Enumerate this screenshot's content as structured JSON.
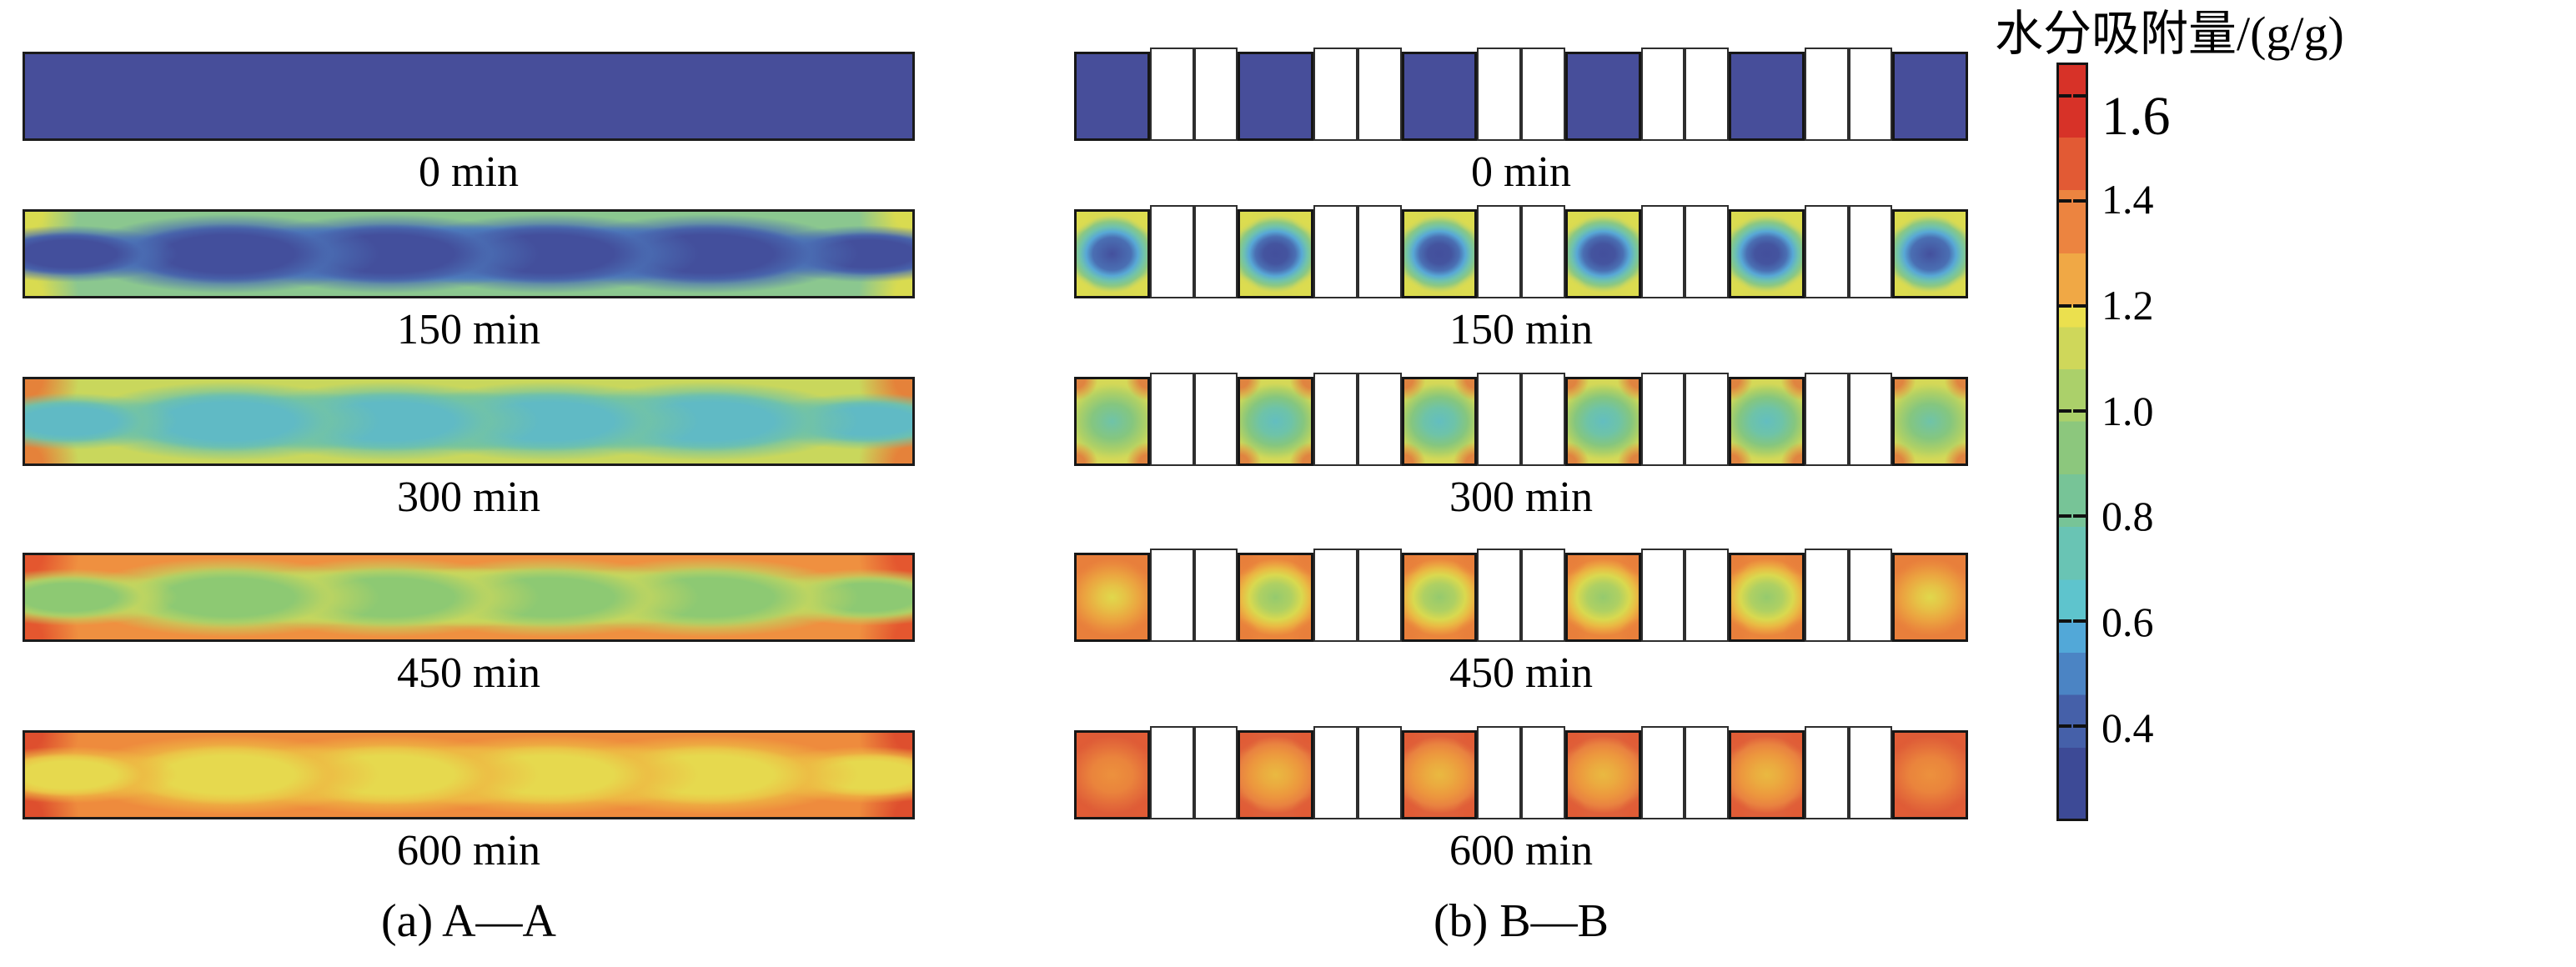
{
  "figure": {
    "background": "#ffffff",
    "left_panel_caption": "(a) A—A",
    "right_panel_caption": "(b) B—B"
  },
  "colorbar": {
    "title": "水分吸附量/(g/g)",
    "unit": "g/g",
    "ticks": [
      "1.6",
      "1.4",
      "1.2",
      "1.0",
      "0.8",
      "0.6",
      "0.4"
    ],
    "range_top_value": 1.66,
    "range_bottom_value": 0.23,
    "stops": [
      [
        0.0,
        "#d73228"
      ],
      [
        0.096,
        "#d73228"
      ],
      [
        0.096,
        "#e25a34"
      ],
      [
        0.166,
        "#e25a34"
      ],
      [
        0.166,
        "#ec8440"
      ],
      [
        0.25,
        "#ec8440"
      ],
      [
        0.25,
        "#f0a845"
      ],
      [
        0.32,
        "#f0a845"
      ],
      [
        0.32,
        "#ebe04e"
      ],
      [
        0.348,
        "#ebe04e"
      ],
      [
        0.348,
        "#cfd75a"
      ],
      [
        0.404,
        "#cfd75a"
      ],
      [
        0.404,
        "#abd06a"
      ],
      [
        0.473,
        "#abd06a"
      ],
      [
        0.473,
        "#8cc77d"
      ],
      [
        0.543,
        "#8cc77d"
      ],
      [
        0.543,
        "#77c497"
      ],
      [
        0.613,
        "#77c497"
      ],
      [
        0.613,
        "#69c4b4"
      ],
      [
        0.683,
        "#69c4b4"
      ],
      [
        0.683,
        "#5ec4cd"
      ],
      [
        0.738,
        "#5ec4cd"
      ],
      [
        0.738,
        "#52a8d8"
      ],
      [
        0.78,
        "#52a8d8"
      ],
      [
        0.78,
        "#4b84c4"
      ],
      [
        0.836,
        "#4b84c4"
      ],
      [
        0.836,
        "#4560a9"
      ],
      [
        0.906,
        "#4560a9"
      ],
      [
        0.906,
        "#3d4a96"
      ],
      [
        1.0,
        "#3d4a96"
      ]
    ]
  },
  "blob_positions_pct": [
    5,
    23,
    41,
    59,
    77,
    95
  ],
  "rows": [
    {
      "time": "0 min",
      "left": {
        "flat": "#474e9a"
      },
      "right": {
        "flat": "#474e9a"
      }
    },
    {
      "time": "150 min",
      "left": {
        "base": "#8bc78f",
        "corner": "#d9db50",
        "side": "#cdd75a",
        "band": "#58abd8",
        "halo": "#4a6db3",
        "core": "#434f9c"
      },
      "right": {
        "stops_mid": "#434f9c 0%, #44549f 26%, #4a6fb3 44%, #58a8d6 58%, #6fc2ae 70%, #8cc882 82%, #c3d562 93%, #d9da52 100%",
        "stops_end": "#44509d 0%, #4a6fb3 42%, #58a8d6 57%, #6fc2ae 70%, #8cc882 83%, #c3d562 94%, #d9da52 100%",
        "corner": "#dcdc4f"
      }
    },
    {
      "time": "300 min",
      "left": {
        "base": "#c9d75c",
        "corner": "#e5823a",
        "side": "#dbc24e",
        "band": "#85c681",
        "halo": "#72c3a6",
        "core": "#60bac5"
      },
      "right": {
        "stops_mid": "#63bec0 0%, #6ec3a8 35%, #85c67f 62%, #aed066 82%, #cdd75a 95%, #d5d857 100%",
        "stops_end": "#6fc3a9 0%, #85c67f 45%, #aed066 75%, #cdd75a 93%, #d5d857 100%",
        "corner": "#e08440"
      }
    },
    {
      "time": "450 min",
      "left": {
        "base": "#ef9040",
        "corner": "#e4572f",
        "side": "#e96e38",
        "band": "#e3da4d",
        "halo": "#c0d560",
        "core": "#8dc973"
      },
      "right": {
        "stops_mid": "#95ca6e 0%, #aed063 35%, #d9d94f 58%, #e9bc44 74%, #ec9c40 88%, #ea853c 100%",
        "stops_end": "#e0d84c 0%, #e6c246 30%, #eba440 60%, #ea8a3d 85%, #e87f3b 100%",
        "corner": "#e87f3b"
      }
    },
    {
      "time": "600 min",
      "left": {
        "base": "#ee8b3d",
        "corner": "#de4f2e",
        "side": "#e7703a",
        "band": "#f0a943",
        "halo": "#edbb44",
        "core": "#e6d94e"
      },
      "right": {
        "stops_mid": "#e9b941 0%, #ebaa3f 30%, #ec963e 58%, #e98240 80%, #e2693b 95%, #df613a 100%",
        "stops_end": "#ec913d 0%, #ea843c 45%, #e46d3a 75%, #de5c37 100%",
        "corner": "#e05c36"
      }
    }
  ],
  "chart_data": {
    "type": "heatmap",
    "title": "水分吸附量/(g/g)",
    "legend_position": "right",
    "colorbar_range": [
      0.4,
      1.6
    ],
    "colorbar_tick_labels": [
      1.6,
      1.4,
      1.2,
      1.0,
      0.8,
      0.6,
      0.4
    ],
    "times_min": [
      0,
      150,
      300,
      450,
      600
    ],
    "panels": [
      {
        "name": "(a) A—A",
        "description": "continuous cross-section, 6 periodic adsorption cells",
        "approx_values_gg": [
          {
            "time_min": 0,
            "center": 0.3,
            "edge": 0.3,
            "corner": 0.3
          },
          {
            "time_min": 150,
            "center": 0.35,
            "edge": 0.9,
            "corner": 1.15
          },
          {
            "time_min": 300,
            "center": 0.65,
            "edge": 1.1,
            "corner": 1.4
          },
          {
            "time_min": 450,
            "center": 0.95,
            "edge": 1.3,
            "corner": 1.5
          },
          {
            "time_min": 600,
            "center": 1.15,
            "edge": 1.35,
            "corner": 1.55
          }
        ]
      },
      {
        "name": "(b) B—B",
        "description": "6 adsorbent segments separated by paired empty (white) cells",
        "approx_values_gg": [
          {
            "time_min": 0,
            "center": 0.3,
            "edge": 0.3,
            "corner": 0.3
          },
          {
            "time_min": 150,
            "center": 0.35,
            "edge": 1.0,
            "corner": 1.18
          },
          {
            "time_min": 300,
            "center": 0.7,
            "edge": 1.12,
            "corner": 1.42
          },
          {
            "time_min": 450,
            "center": 1.0,
            "edge": 1.32,
            "corner": 1.45
          },
          {
            "time_min": 600,
            "center": 1.22,
            "edge": 1.42,
            "corner": 1.52
          }
        ]
      }
    ]
  }
}
